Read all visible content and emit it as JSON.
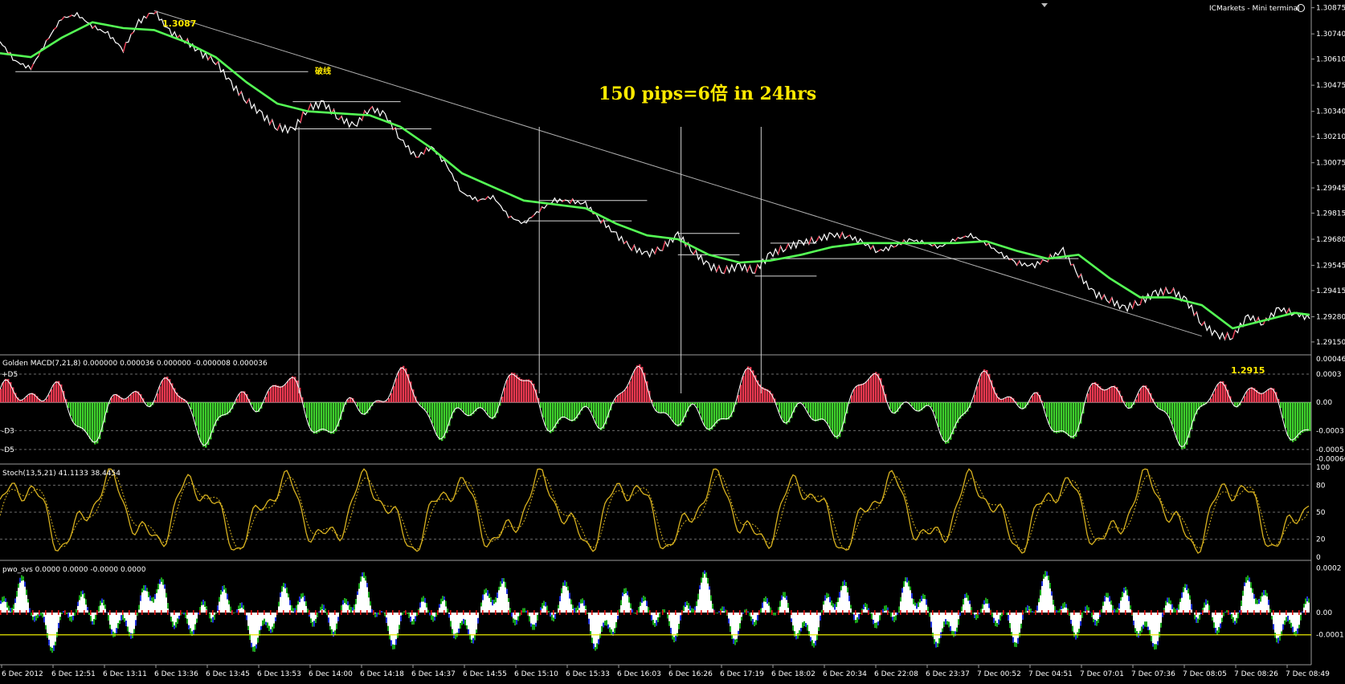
{
  "terminal": {
    "broker_label": "ICMarkets - Mini terminal"
  },
  "annotation": {
    "callout": "150 pips=6倍  in 24hrs",
    "high_tag": "1.3087",
    "low_tag": "1.2915",
    "break_tag": "破线"
  },
  "colors": {
    "background": "#000000",
    "grid": "#6b6b6b",
    "ma_line": "#55ff55",
    "hist_up": "#e8384f",
    "hist_down": "#3ecf2c",
    "stoch": "#d8b21f",
    "pwo_white": "#ffffff",
    "pwo_green": "#16a318",
    "pwo_blue": "#1d2fd6",
    "pwo_red": "#e01010",
    "pwo_level": "#e8e800",
    "label": "#ffea00"
  },
  "chart_data": [
    {
      "type": "line",
      "panel": "price",
      "y_ticks": [
        "1.30875",
        "1.30740",
        "1.30610",
        "1.30475",
        "1.30340",
        "1.30210",
        "1.30075",
        "1.29945",
        "1.29815",
        "1.29680",
        "1.29545",
        "1.29415",
        "1.29280",
        "1.29150"
      ],
      "ylim": [
        1.291,
        1.3089
      ],
      "x_ticks": [
        "6 Dec 2012",
        "6 Dec 12:51",
        "6 Dec 13:11",
        "6 Dec 13:36",
        "6 Dec 13:45",
        "6 Dec 13:53",
        "6 Dec 14:00",
        "6 Dec 14:18",
        "6 Dec 14:37",
        "6 Dec 14:55",
        "6 Dec 15:10",
        "6 Dec 15:33",
        "6 Dec 16:03",
        "6 Dec 16:26",
        "6 Dec 17:19",
        "6 Dec 18:02",
        "6 Dec 20:34",
        "6 Dec 22:08",
        "6 Dec 23:37",
        "7 Dec 00:52",
        "7 Dec 04:51",
        "7 Dec 07:01",
        "7 Dec 07:36",
        "7 Dec 08:05",
        "7 Dec 08:26",
        "7 Dec 08:49"
      ],
      "price_path": [
        [
          0,
          1.307
        ],
        [
          1,
          1.306
        ],
        [
          2,
          1.3056
        ],
        [
          3,
          1.307
        ],
        [
          4,
          1.3082
        ],
        [
          5,
          1.3084
        ],
        [
          6,
          1.3078
        ],
        [
          7,
          1.3074
        ],
        [
          8,
          1.3066
        ],
        [
          9,
          1.308
        ],
        [
          10,
          1.3086
        ],
        [
          11,
          1.3075
        ],
        [
          12,
          1.3071
        ],
        [
          13,
          1.3064
        ],
        [
          14,
          1.306
        ],
        [
          15,
          1.3048
        ],
        [
          16,
          1.304
        ],
        [
          17,
          1.3032
        ],
        [
          18,
          1.3026
        ],
        [
          19,
          1.3024
        ],
        [
          20,
          1.3036
        ],
        [
          21,
          1.3038
        ],
        [
          22,
          1.3031
        ],
        [
          23,
          1.3026
        ],
        [
          24,
          1.3036
        ],
        [
          25,
          1.3032
        ],
        [
          26,
          1.302
        ],
        [
          27,
          1.301
        ],
        [
          28,
          1.3016
        ],
        [
          29,
          1.3006
        ],
        [
          30,
          1.2992
        ],
        [
          31,
          1.2988
        ],
        [
          32,
          1.299
        ],
        [
          33,
          1.298
        ],
        [
          34,
          1.2976
        ],
        [
          35,
          1.2983
        ],
        [
          36,
          1.2988
        ],
        [
          37,
          1.2988
        ],
        [
          38,
          1.2986
        ],
        [
          39,
          1.2978
        ],
        [
          40,
          1.297
        ],
        [
          41,
          1.2964
        ],
        [
          42,
          1.296
        ],
        [
          43,
          1.2964
        ],
        [
          44,
          1.297
        ],
        [
          45,
          1.2962
        ],
        [
          46,
          1.2954
        ],
        [
          47,
          1.2952
        ],
        [
          48,
          1.2954
        ],
        [
          49,
          1.2952
        ],
        [
          50,
          1.296
        ],
        [
          51,
          1.2964
        ],
        [
          52,
          1.2966
        ],
        [
          53,
          1.2968
        ],
        [
          54,
          1.297
        ],
        [
          55,
          1.297
        ],
        [
          56,
          1.2966
        ],
        [
          57,
          1.2962
        ],
        [
          58,
          1.2964
        ],
        [
          59,
          1.2968
        ],
        [
          60,
          1.2966
        ],
        [
          61,
          1.2964
        ],
        [
          62,
          1.2968
        ],
        [
          63,
          1.297
        ],
        [
          64,
          1.2966
        ],
        [
          65,
          1.296
        ],
        [
          66,
          1.2956
        ],
        [
          67,
          1.2954
        ],
        [
          68,
          1.2958
        ],
        [
          69,
          1.2962
        ],
        [
          70,
          1.295
        ],
        [
          71,
          1.294
        ],
        [
          72,
          1.2937
        ],
        [
          73,
          1.2932
        ],
        [
          74,
          1.2936
        ],
        [
          75,
          1.294
        ],
        [
          76,
          1.2942
        ],
        [
          77,
          1.2936
        ],
        [
          78,
          1.2925
        ],
        [
          79,
          1.2918
        ],
        [
          80,
          1.2918
        ],
        [
          81,
          1.2928
        ],
        [
          82,
          1.2925
        ],
        [
          83,
          1.2932
        ],
        [
          84,
          1.293
        ],
        [
          85,
          1.2927
        ]
      ],
      "ma_path": [
        [
          0,
          1.3064
        ],
        [
          2,
          1.3062
        ],
        [
          4,
          1.3072
        ],
        [
          6,
          1.308
        ],
        [
          8,
          1.3077
        ],
        [
          10,
          1.3076
        ],
        [
          12,
          1.307
        ],
        [
          14,
          1.3062
        ],
        [
          16,
          1.3049
        ],
        [
          18,
          1.3038
        ],
        [
          20,
          1.3034
        ],
        [
          22,
          1.3033
        ],
        [
          24,
          1.3032
        ],
        [
          26,
          1.3026
        ],
        [
          28,
          1.3015
        ],
        [
          30,
          1.3002
        ],
        [
          32,
          1.2995
        ],
        [
          34,
          1.2988
        ],
        [
          36,
          1.2986
        ],
        [
          38,
          1.2984
        ],
        [
          40,
          1.2976
        ],
        [
          42,
          1.297
        ],
        [
          44,
          1.2968
        ],
        [
          46,
          1.296
        ],
        [
          48,
          1.2956
        ],
        [
          50,
          1.2957
        ],
        [
          52,
          1.296
        ],
        [
          54,
          1.2964
        ],
        [
          56,
          1.2966
        ],
        [
          58,
          1.2966
        ],
        [
          60,
          1.2966
        ],
        [
          62,
          1.2966
        ],
        [
          64,
          1.2967
        ],
        [
          66,
          1.2962
        ],
        [
          68,
          1.2958
        ],
        [
          70,
          1.296
        ],
        [
          72,
          1.2948
        ],
        [
          74,
          1.2938
        ],
        [
          76,
          1.2938
        ],
        [
          78,
          1.2934
        ],
        [
          80,
          1.2922
        ],
        [
          82,
          1.2926
        ],
        [
          84,
          1.293
        ],
        [
          85,
          1.2929
        ]
      ],
      "trendline": [
        [
          10,
          1.3086
        ],
        [
          78,
          1.2918
        ]
      ],
      "support_lines": [
        {
          "x0": 1,
          "x1": 20,
          "y": 1.30545
        },
        {
          "x0": 19,
          "x1": 26,
          "y": 1.3039
        },
        {
          "x0": 19,
          "x1": 28,
          "y": 1.3025
        },
        {
          "x0": 35,
          "x1": 42,
          "y": 1.2988
        },
        {
          "x0": 34,
          "x1": 41,
          "y": 1.29775
        },
        {
          "x0": 44,
          "x1": 48,
          "y": 1.2971
        },
        {
          "x0": 44,
          "x1": 48,
          "y": 1.296
        },
        {
          "x0": 50,
          "x1": 70,
          "y": 1.2958
        },
        {
          "x0": 50,
          "x1": 53,
          "y": 1.2966
        },
        {
          "x0": 49,
          "x1": 53,
          "y": 1.2949
        }
      ],
      "drop_verticals": [
        19.4,
        35.0,
        44.2,
        49.4
      ]
    },
    {
      "type": "bar",
      "panel": "macd",
      "label": "Golden MACD(7,21,8) 0.000000 0.000036 0.000000 -0.000008 0.000036",
      "y_ticks": [
        "0.00046",
        "0.0003",
        "0.00",
        "-0.0003",
        "-0.0005",
        "-0.00060"
      ],
      "left_ticks": [
        "+D5",
        "-D3",
        "-D5"
      ],
      "ylim": [
        -0.00062,
        0.00047
      ]
    },
    {
      "type": "line",
      "panel": "stoch",
      "label": "Stoch(13,5,21) 41.1133 38.4454",
      "y_ticks": [
        "100",
        "80",
        "50",
        "20",
        "0"
      ],
      "ylim": [
        0,
        100
      ]
    },
    {
      "type": "bar",
      "panel": "pwo",
      "label": "pwo_svs 0.0000 0.0000 -0.0000 0.0000",
      "y_ticks": [
        "0.0002",
        "0.00",
        "-0.0001"
      ],
      "ylim": [
        -0.00022,
        0.00022
      ],
      "level": -0.0001
    }
  ]
}
